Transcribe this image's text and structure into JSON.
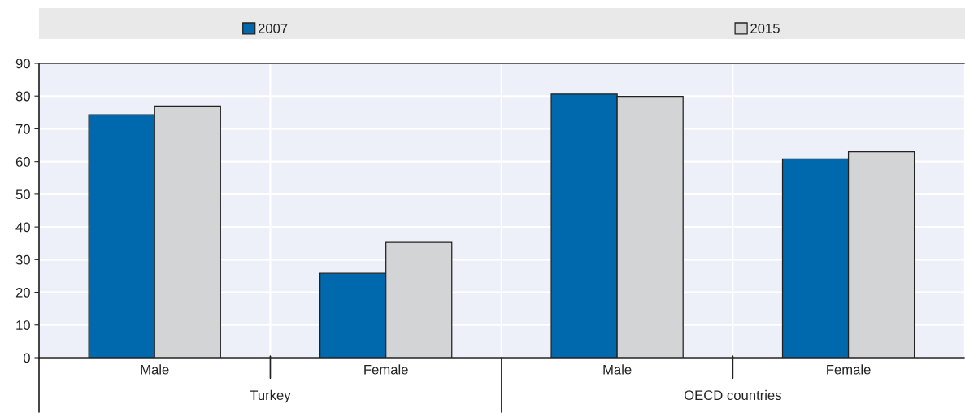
{
  "chart_data": {
    "type": "bar",
    "categories": [
      "Male",
      "Female",
      "Male",
      "Female"
    ],
    "series": [
      {
        "name": "2007",
        "color": "#0068ad",
        "values": [
          74.3,
          25.8,
          80.6,
          60.8
        ]
      },
      {
        "name": "2015",
        "color": "#d3d4d6",
        "values": [
          77.0,
          35.3,
          79.9,
          63.0
        ]
      }
    ],
    "annotations": [
      "Turkey",
      "OECD countries"
    ],
    "ylim": [
      0,
      90
    ],
    "yticks": [
      0,
      10,
      20,
      30,
      40,
      50,
      60,
      70,
      80,
      90
    ],
    "grid": true,
    "legend": "top"
  }
}
